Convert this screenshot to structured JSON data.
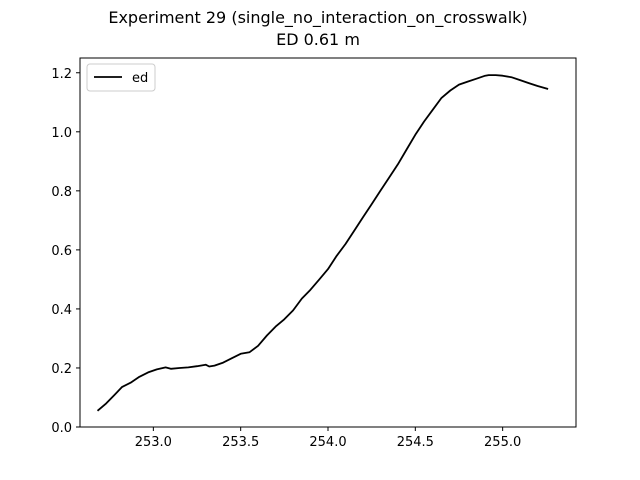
{
  "chart_data": {
    "type": "line",
    "title": "Experiment 29 (single_no_interaction_on_crosswalk)",
    "subtitle": "ED 0.61 m",
    "xlabel": "",
    "ylabel": "",
    "xlim": [
      252.58,
      255.42
    ],
    "ylim": [
      0.0,
      1.25
    ],
    "x_ticks": [
      253.0,
      253.5,
      254.0,
      254.5,
      255.0
    ],
    "x_tick_labels": [
      "253.0",
      "253.5",
      "254.0",
      "254.5",
      "255.0"
    ],
    "y_ticks": [
      0.0,
      0.2,
      0.4,
      0.6,
      0.8,
      1.0,
      1.2
    ],
    "y_tick_labels": [
      "0.0",
      "0.2",
      "0.4",
      "0.6",
      "0.8",
      "1.0",
      "1.2"
    ],
    "grid": false,
    "legend_position": "top-left",
    "series": [
      {
        "name": "ed",
        "color": "#000000",
        "x": [
          252.68,
          252.73,
          252.78,
          252.82,
          252.87,
          252.92,
          252.97,
          253.02,
          253.07,
          253.1,
          253.15,
          253.2,
          253.25,
          253.3,
          253.32,
          253.35,
          253.4,
          253.45,
          253.5,
          253.55,
          253.6,
          253.65,
          253.7,
          253.75,
          253.8,
          253.85,
          253.9,
          253.95,
          254.0,
          254.05,
          254.1,
          254.15,
          254.2,
          254.25,
          254.3,
          254.35,
          254.4,
          254.45,
          254.5,
          254.55,
          254.6,
          254.65,
          254.7,
          254.75,
          254.8,
          254.85,
          254.9,
          254.92,
          254.96,
          255.0,
          255.05,
          255.1,
          255.15,
          255.2,
          255.26
        ],
        "y": [
          0.055,
          0.08,
          0.11,
          0.135,
          0.15,
          0.17,
          0.185,
          0.195,
          0.202,
          0.197,
          0.2,
          0.202,
          0.206,
          0.211,
          0.205,
          0.208,
          0.218,
          0.233,
          0.248,
          0.253,
          0.275,
          0.31,
          0.34,
          0.365,
          0.395,
          0.435,
          0.465,
          0.5,
          0.535,
          0.58,
          0.62,
          0.665,
          0.71,
          0.755,
          0.8,
          0.845,
          0.89,
          0.94,
          0.99,
          1.035,
          1.075,
          1.115,
          1.14,
          1.16,
          1.17,
          1.18,
          1.19,
          1.192,
          1.192,
          1.19,
          1.185,
          1.175,
          1.165,
          1.155,
          1.145
        ]
      }
    ]
  }
}
